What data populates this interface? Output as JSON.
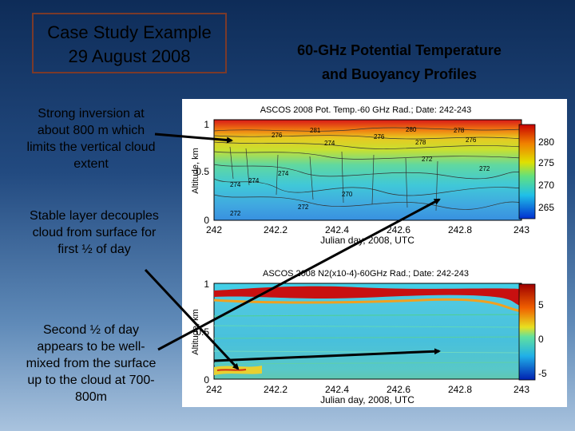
{
  "slide": {
    "title_line1": "Case Study Example",
    "title_line2": "29 August 2008",
    "heading_line1": "60-GHz Potential Temperature",
    "heading_line2": "and Buoyancy Profiles"
  },
  "notes": {
    "note1": [
      "Strong inversion at",
      "about 800 m  which",
      "limits the vertical cloud",
      "extent"
    ],
    "note2": [
      "Stable layer decouples",
      "cloud from surface for",
      "first ½ of day"
    ],
    "note3": [
      "Second ½ of day",
      "appears to be well-",
      "mixed from the surface",
      "up to the cloud at 700-",
      "800m"
    ]
  },
  "plot_top": {
    "title": "ASCOS 2008 Pot. Temp.-60 GHz Rad.; Date: 242-243",
    "ylabel": "Altitude, km",
    "xlabel": "Julian day, 2008, UTC",
    "xticks": [
      "242",
      "242.2",
      "242.4",
      "242.6",
      "242.8",
      "243"
    ],
    "yticks": [
      "0",
      "0.5",
      "1"
    ],
    "colorbar_ticks": [
      "280",
      "275",
      "270",
      "265"
    ],
    "contour_labels": [
      "276",
      "281",
      "280",
      "278",
      "276",
      "274",
      "276",
      "278",
      "274",
      "274",
      "272",
      "272",
      "274",
      "272",
      "270",
      "272"
    ]
  },
  "plot_bottom": {
    "title": "ASCOS 2008 N2(x10-4)-60GHz Rad.; Date: 242-243",
    "ylabel": "Altitude, km",
    "xlabel": "Julian day, 2008, UTC",
    "xticks": [
      "242",
      "242.2",
      "242.4",
      "242.6",
      "242.8",
      "243"
    ],
    "yticks": [
      "0",
      "0.5",
      "1"
    ],
    "colorbar_ticks": [
      "5",
      "0",
      "-5"
    ]
  }
}
